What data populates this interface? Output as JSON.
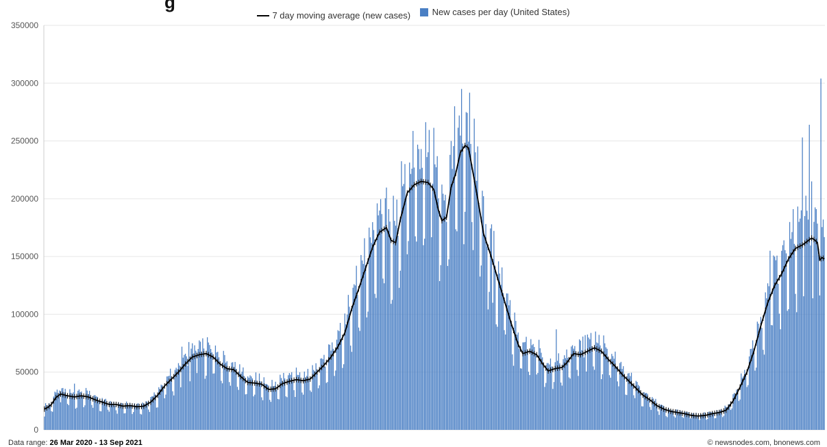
{
  "chart_data": {
    "type": "bar",
    "title_fragment": "g",
    "legend": {
      "line_label": "7 day moving average (new cases)",
      "bar_label": "New cases per day (United States)"
    },
    "ylim": [
      0,
      350000
    ],
    "yticks": [
      "0",
      "50000",
      "100000",
      "150000",
      "200000",
      "250000",
      "300000",
      "350000"
    ],
    "ytick_values": [
      0,
      50000,
      100000,
      150000,
      200000,
      250000,
      300000,
      350000
    ],
    "grid": true,
    "legend_position": "top-center",
    "series": [
      {
        "name": "New cases per day (United States)",
        "type": "bar",
        "color": "#4a7fc4"
      },
      {
        "name": "7 day moving average (new cases)",
        "type": "line",
        "color": "#000000"
      }
    ],
    "anchors": [
      [
        0,
        18000
      ],
      [
        3,
        19500
      ],
      [
        6,
        22000
      ],
      [
        10,
        28000
      ],
      [
        14,
        31000
      ],
      [
        20,
        29500
      ],
      [
        26,
        28500
      ],
      [
        32,
        29500
      ],
      [
        38,
        28500
      ],
      [
        44,
        26000
      ],
      [
        50,
        24000
      ],
      [
        56,
        22000
      ],
      [
        62,
        22000
      ],
      [
        68,
        20500
      ],
      [
        74,
        21000
      ],
      [
        80,
        20000
      ],
      [
        86,
        20500
      ],
      [
        92,
        24000
      ],
      [
        98,
        30000
      ],
      [
        104,
        38000
      ],
      [
        110,
        44000
      ],
      [
        116,
        50000
      ],
      [
        122,
        57000
      ],
      [
        128,
        63000
      ],
      [
        134,
        65000
      ],
      [
        140,
        66000
      ],
      [
        146,
        63000
      ],
      [
        152,
        57000
      ],
      [
        158,
        53000
      ],
      [
        164,
        52000
      ],
      [
        170,
        46000
      ],
      [
        176,
        41000
      ],
      [
        182,
        40500
      ],
      [
        188,
        39500
      ],
      [
        194,
        35000
      ],
      [
        200,
        35500
      ],
      [
        206,
        40000
      ],
      [
        212,
        42000
      ],
      [
        218,
        43500
      ],
      [
        224,
        42500
      ],
      [
        230,
        44000
      ],
      [
        236,
        50000
      ],
      [
        242,
        56000
      ],
      [
        248,
        63000
      ],
      [
        254,
        72000
      ],
      [
        260,
        84000
      ],
      [
        266,
        105000
      ],
      [
        272,
        122000
      ],
      [
        278,
        140000
      ],
      [
        284,
        158000
      ],
      [
        290,
        171000
      ],
      [
        296,
        175000
      ],
      [
        300,
        164000
      ],
      [
        304,
        162000
      ],
      [
        308,
        182000
      ],
      [
        314,
        205000
      ],
      [
        320,
        212000
      ],
      [
        326,
        215000
      ],
      [
        332,
        214000
      ],
      [
        337,
        208000
      ],
      [
        341,
        190000
      ],
      [
        344,
        181000
      ],
      [
        348,
        184000
      ],
      [
        352,
        210000
      ],
      [
        356,
        222000
      ],
      [
        360,
        240000
      ],
      [
        364,
        246000
      ],
      [
        367,
        244000
      ],
      [
        371,
        222000
      ],
      [
        375,
        200000
      ],
      [
        380,
        170000
      ],
      [
        386,
        152000
      ],
      [
        392,
        132000
      ],
      [
        398,
        112000
      ],
      [
        404,
        92000
      ],
      [
        410,
        74000
      ],
      [
        414,
        66000
      ],
      [
        420,
        68000
      ],
      [
        426,
        65000
      ],
      [
        432,
        56000
      ],
      [
        436,
        51000
      ],
      [
        442,
        53000
      ],
      [
        448,
        54000
      ],
      [
        452,
        58000
      ],
      [
        458,
        66000
      ],
      [
        464,
        65000
      ],
      [
        470,
        68000
      ],
      [
        476,
        71000
      ],
      [
        482,
        68000
      ],
      [
        488,
        61000
      ],
      [
        494,
        55000
      ],
      [
        500,
        48000
      ],
      [
        506,
        42000
      ],
      [
        512,
        36000
      ],
      [
        518,
        30000
      ],
      [
        524,
        26000
      ],
      [
        530,
        21000
      ],
      [
        536,
        18000
      ],
      [
        542,
        16000
      ],
      [
        548,
        15000
      ],
      [
        554,
        14000
      ],
      [
        560,
        12500
      ],
      [
        566,
        12000
      ],
      [
        572,
        12500
      ],
      [
        578,
        14000
      ],
      [
        584,
        15000
      ],
      [
        590,
        17000
      ],
      [
        596,
        25000
      ],
      [
        602,
        37000
      ],
      [
        608,
        50000
      ],
      [
        614,
        68000
      ],
      [
        620,
        90000
      ],
      [
        626,
        110000
      ],
      [
        632,
        125000
      ],
      [
        638,
        135000
      ],
      [
        644,
        148000
      ],
      [
        650,
        157000
      ],
      [
        656,
        160000
      ],
      [
        660,
        163000
      ],
      [
        664,
        166000
      ],
      [
        667,
        164000
      ],
      [
        669,
        162000
      ],
      [
        671,
        147000
      ],
      [
        673,
        149000
      ],
      [
        675,
        148000
      ]
    ],
    "spikes": [
      [
        9,
        33000
      ],
      [
        13,
        34000
      ],
      [
        26,
        40000
      ],
      [
        119,
        72000
      ],
      [
        125,
        76000
      ],
      [
        133,
        70000
      ],
      [
        270,
        142000
      ],
      [
        281,
        175000
      ],
      [
        288,
        196000
      ],
      [
        312,
        230000
      ],
      [
        318,
        226000
      ],
      [
        326,
        243000
      ],
      [
        336,
        213000
      ],
      [
        352,
        250000
      ],
      [
        355,
        280000
      ],
      [
        359,
        272000
      ],
      [
        361,
        295000
      ],
      [
        388,
        110000
      ],
      [
        443,
        87000
      ],
      [
        468,
        82000
      ],
      [
        628,
        155000
      ],
      [
        640,
        164000
      ],
      [
        648,
        191000
      ],
      [
        653,
        180000
      ],
      [
        656,
        253000
      ],
      [
        658,
        185000
      ],
      [
        662,
        264000
      ],
      [
        664,
        215000
      ],
      [
        666,
        180000
      ],
      [
        668,
        191000
      ],
      [
        672,
        304000
      ],
      [
        674,
        182000
      ]
    ]
  },
  "footer": {
    "range_label": "Data range:",
    "range_value": "26 Mar 2020 - 13 Sep 2021",
    "credit": "© newsnodes.com, bnonews.com"
  }
}
